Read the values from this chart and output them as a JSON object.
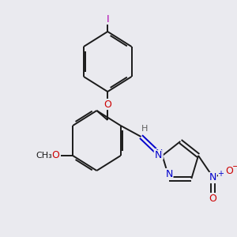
{
  "bg_color": "#eaeaef",
  "bond_color": "#1a1a1a",
  "atom_colors": {
    "I": "#b000b0",
    "O": "#cc0000",
    "N": "#0000cc",
    "C": "#1a1a1a",
    "H": "#606060"
  },
  "figsize": [
    3.0,
    3.0
  ],
  "dpi": 100
}
